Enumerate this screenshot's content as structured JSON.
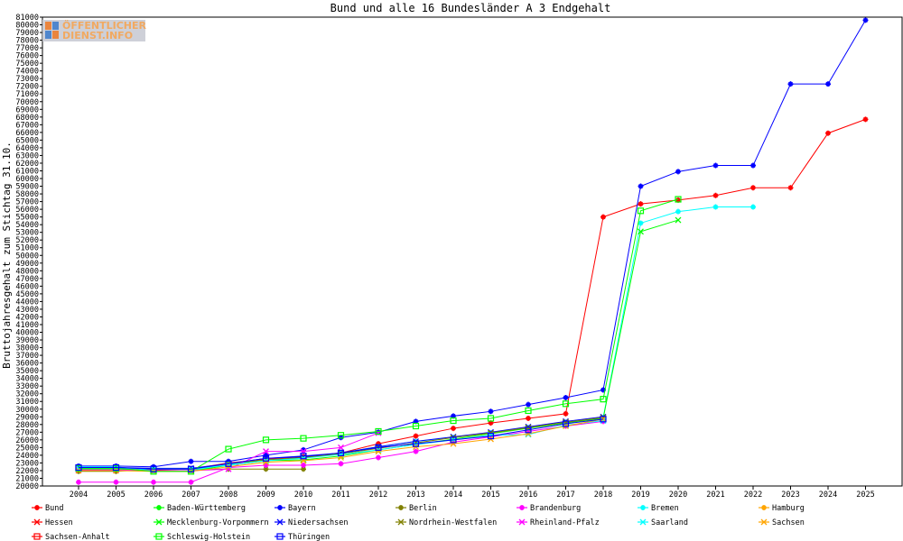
{
  "chart_data": {
    "type": "line",
    "title": "Bund und alle 16 Bundesländer A 3 Endgehalt",
    "xlabel": "",
    "ylabel": "Bruttojahresgehalt zum Stichtag 31.10.",
    "categories": [
      "2004",
      "2005",
      "2006",
      "2007",
      "2008",
      "2009",
      "2010",
      "2011",
      "2012",
      "2013",
      "2014",
      "2015",
      "2016",
      "2017",
      "2018",
      "2019",
      "2020",
      "2021",
      "2022",
      "2023",
      "2024",
      "2025"
    ],
    "ylim": [
      20000,
      81000
    ],
    "ytick_step": 1000,
    "grid": false,
    "legend_position": "bottom",
    "series": [
      {
        "name": "Bund",
        "color": "#ff0000",
        "marker": "star",
        "values": [
          22300,
          22300,
          22100,
          22200,
          23000,
          23500,
          23800,
          24300,
          25500,
          26500,
          27500,
          28200,
          28800,
          29400,
          55000,
          56700,
          57200,
          57800,
          58800,
          58800,
          65900,
          67700
        ]
      },
      {
        "name": "Baden-Württemberg",
        "color": "#00ff00",
        "marker": "star",
        "values": [
          null,
          null,
          null,
          null,
          null,
          null,
          null,
          null,
          null,
          null,
          null,
          null,
          null,
          null,
          null,
          null,
          null,
          null,
          null,
          null,
          null,
          null
        ]
      },
      {
        "name": "Bayern",
        "color": "#0000ff",
        "marker": "star",
        "values": [
          22600,
          22600,
          22500,
          23200,
          23200,
          24000,
          24700,
          26300,
          27000,
          28400,
          29100,
          29700,
          30600,
          31500,
          32500,
          59000,
          60900,
          61700,
          61700,
          72300,
          72300,
          80600
        ]
      },
      {
        "name": "Berlin",
        "color": "#808000",
        "marker": "star",
        "values": [
          21900,
          21900,
          22200,
          22200,
          22200,
          22200,
          22200,
          null,
          null,
          null,
          null,
          null,
          null,
          null,
          null,
          null,
          null,
          null,
          null,
          null,
          null,
          null
        ]
      },
      {
        "name": "Brandenburg",
        "color": "#ff00ff",
        "marker": "star",
        "values": [
          20500,
          20500,
          20500,
          20500,
          22400,
          22700,
          22700,
          22900,
          23700,
          24500,
          25700,
          26400,
          27100,
          27800,
          28400,
          null,
          null,
          null,
          null,
          null,
          null,
          null
        ]
      },
      {
        "name": "Bremen",
        "color": "#00ffff",
        "marker": "star",
        "values": [
          22500,
          22500,
          22000,
          22000,
          22800,
          23400,
          23600,
          24300,
          25100,
          25800,
          26300,
          26900,
          27600,
          28300,
          28900,
          54200,
          55700,
          56300,
          56300,
          null,
          null,
          null
        ]
      },
      {
        "name": "Hamburg",
        "color": "#ffa500",
        "marker": "star",
        "values": [
          null,
          null,
          null,
          null,
          null,
          null,
          null,
          null,
          null,
          null,
          null,
          null,
          null,
          null,
          null,
          null,
          null,
          null,
          null,
          null,
          null,
          null
        ]
      },
      {
        "name": "Hessen",
        "color": "#ff0000",
        "marker": "x",
        "values": [
          null,
          null,
          null,
          null,
          null,
          null,
          null,
          null,
          null,
          null,
          null,
          null,
          null,
          null,
          null,
          null,
          null,
          null,
          null,
          null,
          null,
          null
        ]
      },
      {
        "name": "Mecklenburg-Vorpommern",
        "color": "#00ff00",
        "marker": "x",
        "values": [
          22200,
          22200,
          21900,
          21900,
          22700,
          23300,
          23400,
          23900,
          24700,
          25400,
          26100,
          26800,
          27500,
          28200,
          28800,
          53100,
          54600,
          null,
          null,
          null,
          null,
          null
        ]
      },
      {
        "name": "Niedersachsen",
        "color": "#0000ff",
        "marker": "x",
        "values": [
          22400,
          22400,
          22300,
          22300,
          22900,
          23600,
          23800,
          24300,
          25100,
          25800,
          26400,
          27000,
          27700,
          28400,
          29000,
          null,
          null,
          null,
          null,
          null,
          null,
          null
        ]
      },
      {
        "name": "Nordrhein-Westfalen",
        "color": "#808000",
        "marker": "x",
        "values": [
          22300,
          22300,
          22200,
          22200,
          22900,
          23400,
          23700,
          24200,
          24900,
          25600,
          26300,
          26900,
          27600,
          28300,
          28900,
          null,
          null,
          null,
          null,
          null,
          null,
          null
        ]
      },
      {
        "name": "Rheinland-Pfalz",
        "color": "#ff00ff",
        "marker": "x",
        "values": [
          22100,
          22100,
          22000,
          22000,
          22200,
          24500,
          24500,
          25000,
          26900,
          null,
          null,
          null,
          null,
          null,
          null,
          null,
          null,
          null,
          null,
          null,
          null,
          null
        ]
      },
      {
        "name": "Saarland",
        "color": "#00ffff",
        "marker": "x",
        "values": [
          22300,
          22300,
          22200,
          22200,
          22700,
          23300,
          23600,
          24100,
          24700,
          25400,
          26000,
          26600,
          26700,
          27900,
          28500,
          null,
          null,
          null,
          null,
          null,
          null,
          null
        ]
      },
      {
        "name": "Sachsen",
        "color": "#ffa500",
        "marker": "x",
        "values": [
          22000,
          22000,
          21900,
          21900,
          22500,
          23100,
          23300,
          23700,
          24500,
          25100,
          25500,
          26100,
          26800,
          27800,
          28700,
          null,
          null,
          null,
          null,
          null,
          null,
          null
        ]
      },
      {
        "name": "Sachsen-Anhalt",
        "color": "#ff0000",
        "marker": "square",
        "values": [
          null,
          null,
          null,
          null,
          null,
          null,
          null,
          null,
          null,
          null,
          null,
          null,
          null,
          null,
          null,
          null,
          null,
          null,
          null,
          null,
          null,
          null
        ]
      },
      {
        "name": "Schleswig-Holstein",
        "color": "#00ff00",
        "marker": "square",
        "values": [
          22300,
          22300,
          21900,
          21900,
          24800,
          26000,
          26200,
          26600,
          27100,
          27800,
          28500,
          28800,
          29800,
          30700,
          31300,
          55800,
          57300,
          null,
          null,
          null,
          null,
          null
        ]
      },
      {
        "name": "Thüringen",
        "color": "#0000ff",
        "marker": "square",
        "values": [
          22400,
          22400,
          22200,
          22200,
          22900,
          23600,
          23900,
          24300,
          25000,
          25500,
          26000,
          26500,
          27300,
          28100,
          28700,
          null,
          null,
          null,
          null,
          null,
          null,
          null
        ]
      }
    ]
  },
  "logo": {
    "line1": "ÖFFENTLICHER",
    "line2": "DIENST.INFO"
  }
}
